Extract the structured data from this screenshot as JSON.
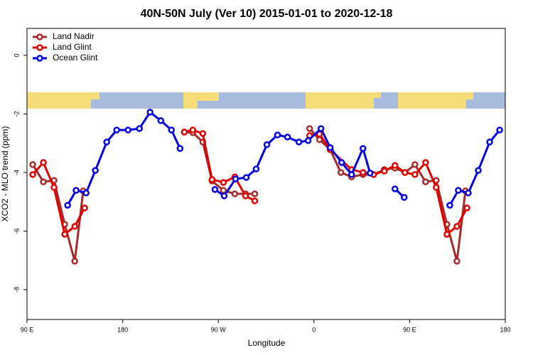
{
  "chart_data": {
    "type": "line",
    "title": "40N-50N July (Ver 10)   2015-01-01 to 2020-12-18",
    "xlabel": "Longitude",
    "ylabel": "XCO2 - MLO trend (ppm)",
    "xlim": [
      90,
      540
    ],
    "ylim": [
      -9.02,
      0.92
    ],
    "xticks": [
      {
        "value": 90,
        "label": "90 E"
      },
      180,
      {
        "value": 270,
        "label": "90 W"
      },
      {
        "value": 360,
        "label": "0"
      },
      {
        "value": 450,
        "label": "90 E"
      },
      {
        "value": 540,
        "label": "180"
      }
    ],
    "yticks": [
      0,
      -2,
      -4,
      -6,
      -8
    ],
    "legend": "top-left",
    "series": [
      {
        "name": "Land Nadir",
        "color": "#a52a2a",
        "x": [
          95.4,
          105.4,
          115.4,
          125.5,
          134.9,
          142.9,
          null,
          238,
          246,
          255.4,
          264.1,
          274.8,
          285.5,
          295.6,
          304.3,
          null,
          355.9,
          365.2,
          375.3,
          385.3,
          395.4,
          406.1,
          416.1,
          426.2,
          436.2,
          445.6,
          455,
          465,
          475,
          485.1,
          494.5,
          502.5
        ],
        "values": [
          -3.73,
          -4.32,
          -4.27,
          -5.77,
          -7.03,
          -4.63,
          null,
          -2.62,
          -2.64,
          -2.96,
          -4.29,
          -4.61,
          -4.73,
          -4.73,
          -4.73,
          null,
          -2.5,
          -2.88,
          -3.22,
          -4.0,
          -4.15,
          -4.07,
          -4.07,
          -3.9,
          -3.85,
          -4.0,
          -3.73,
          -4.32,
          -4.27,
          -5.77,
          -7.03,
          -4.63
        ]
      },
      {
        "name": "Land Glint",
        "color": "#e00000",
        "x": [
          95.4,
          105.4,
          115.4,
          125.5,
          134.9,
          144.2,
          null,
          238,
          246,
          255.4,
          264.1,
          274.8,
          285.5,
          295.6,
          304.3,
          null,
          355.9,
          365.2,
          375.3,
          395.4,
          406.1,
          416.1,
          426.2,
          436.2,
          445.6,
          455,
          465,
          475,
          485.1,
          494.5,
          503.9
        ],
        "values": [
          -4.07,
          -3.66,
          -4.51,
          -6.11,
          -5.84,
          -5.21,
          null,
          -2.62,
          -2.55,
          -2.67,
          -4.24,
          -4.34,
          -4.15,
          -4.8,
          -4.97,
          null,
          -2.74,
          -2.69,
          -3.22,
          -3.9,
          -4.0,
          -4.07,
          -3.95,
          -3.76,
          -4.0,
          -4.07,
          -3.66,
          -4.51,
          -6.11,
          -5.84,
          -5.21
        ]
      },
      {
        "name": "Ocean Glint",
        "color": "#0000e0",
        "x": [
          128.2,
          136.2,
          145.6,
          154.3,
          165,
          174.4,
          185.1,
          195.8,
          205.8,
          215.9,
          225.9,
          234,
          null,
          266.8,
          275.5,
          286.2,
          296.3,
          305.6,
          315.7,
          325.7,
          335.1,
          345.8,
          354.5,
          366.6,
          375.3,
          386,
          395.4,
          406.1,
          412.8,
          null,
          436.2,
          444.9,
          null,
          487.8,
          495.8,
          505.2,
          514.6,
          525.3,
          534.7
        ],
        "values": [
          -5.12,
          -4.61,
          -4.7,
          -3.93,
          -2.96,
          -2.55,
          -2.55,
          -2.5,
          -1.94,
          -2.23,
          -2.55,
          -3.18,
          null,
          -4.58,
          -4.8,
          -4.22,
          -4.17,
          -3.88,
          -3.05,
          -2.72,
          -2.79,
          -2.96,
          -2.91,
          -2.5,
          -3.15,
          -3.66,
          -4.07,
          -3.18,
          -4.02,
          null,
          -4.56,
          -4.85,
          null,
          -5.12,
          -4.61,
          -4.7,
          -3.93,
          -2.96,
          -2.55
        ]
      }
    ]
  }
}
